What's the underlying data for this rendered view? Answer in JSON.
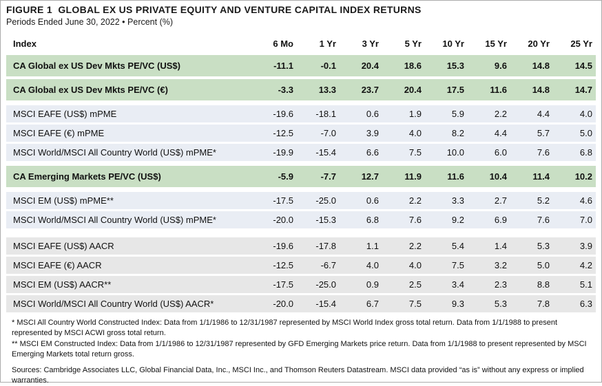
{
  "header": {
    "title": "FIGURE 1  GLOBAL EX US PRIVATE EQUITY AND VENTURE CAPITAL INDEX RETURNS",
    "subtitle": "Periods Ended June 30, 2022 • Percent (%)"
  },
  "chart_data": {
    "type": "table",
    "columns": [
      "Index",
      "6 Mo",
      "1 Yr",
      "3 Yr",
      "5 Yr",
      "10 Yr",
      "15 Yr",
      "20 Yr",
      "25 Yr"
    ],
    "rows": [
      {
        "label": "CA Global ex US Dev Mkts PE/VC (US$)",
        "style": "green",
        "gap": "none",
        "values": [
          "-11.1",
          "-0.1",
          "20.4",
          "18.6",
          "15.3",
          "9.6",
          "14.8",
          "14.5"
        ]
      },
      {
        "label": "CA Global ex US Dev Mkts PE/VC (€)",
        "style": "green",
        "gap": "none",
        "values": [
          "-3.3",
          "13.3",
          "23.7",
          "20.4",
          "17.5",
          "11.6",
          "14.8",
          "14.7"
        ]
      },
      {
        "label": "MSCI EAFE (US$) mPME",
        "style": "blue",
        "gap": "sm",
        "values": [
          "-19.6",
          "-18.1",
          "0.6",
          "1.9",
          "5.9",
          "2.2",
          "4.4",
          "4.0"
        ]
      },
      {
        "label": "MSCI EAFE (€) mPME",
        "style": "blue",
        "gap": "none",
        "values": [
          "-12.5",
          "-7.0",
          "3.9",
          "4.0",
          "8.2",
          "4.4",
          "5.7",
          "5.0"
        ]
      },
      {
        "label": "MSCI World/MSCI All Country World (US$) mPME*",
        "style": "blue",
        "gap": "none",
        "values": [
          "-19.9",
          "-15.4",
          "6.6",
          "7.5",
          "10.0",
          "6.0",
          "7.6",
          "6.8"
        ]
      },
      {
        "label": "CA Emerging Markets PE/VC (US$)",
        "style": "green",
        "gap": "sm",
        "values": [
          "-5.9",
          "-7.7",
          "12.7",
          "11.9",
          "11.6",
          "10.4",
          "11.4",
          "10.2"
        ]
      },
      {
        "label": "MSCI EM (US$) mPME**",
        "style": "blue",
        "gap": "sm",
        "values": [
          "-17.5",
          "-25.0",
          "0.6",
          "2.2",
          "3.3",
          "2.7",
          "5.2",
          "4.6"
        ]
      },
      {
        "label": "MSCI World/MSCI All Country World (US$) mPME*",
        "style": "blue",
        "gap": "none",
        "values": [
          "-20.0",
          "-15.3",
          "6.8",
          "7.6",
          "9.2",
          "6.9",
          "7.6",
          "7.0"
        ]
      },
      {
        "label": "MSCI EAFE (US$) AACR",
        "style": "gray",
        "gap": "lg",
        "values": [
          "-19.6",
          "-17.8",
          "1.1",
          "2.2",
          "5.4",
          "1.4",
          "5.3",
          "3.9"
        ]
      },
      {
        "label": "MSCI EAFE (€) AACR",
        "style": "gray",
        "gap": "none",
        "values": [
          "-12.5",
          "-6.7",
          "4.0",
          "4.0",
          "7.5",
          "3.2",
          "5.0",
          "4.2"
        ]
      },
      {
        "label": "MSCI EM (US$) AACR**",
        "style": "gray",
        "gap": "none",
        "values": [
          "-17.5",
          "-25.0",
          "0.9",
          "2.5",
          "3.4",
          "2.3",
          "8.8",
          "5.1"
        ]
      },
      {
        "label": "MSCI World/MSCI All Country World (US$) AACR*",
        "style": "gray",
        "gap": "none",
        "values": [
          "-20.0",
          "-15.4",
          "6.7",
          "7.5",
          "9.3",
          "5.3",
          "7.8",
          "6.3"
        ]
      }
    ]
  },
  "footnotes": [
    "* MSCI All Country World Constructed Index: Data from 1/1/1986 to 12/31/1987 represented by MSCI World Index gross total return. Data from 1/1/1988 to present represented by MSCI ACWI gross total return.",
    "** MSCI EM Constructed Index: Data from 1/1/1986 to 12/31/1987 represented by GFD Emerging Markets price return. Data from 1/1/1988 to present represented by MSCI Emerging Markets total return gross.",
    "Sources: Cambridge Associates LLC, Global Financial Data, Inc., MSCI Inc., and Thomson Reuters Datastream. MSCI data provided “as is” without any express or implied warranties."
  ],
  "colors": {
    "green_row_bg": "#c9dfc4",
    "blue_row_bg": "#e9edf4",
    "gray_row_bg": "#e7e7e7",
    "text": "#111111"
  }
}
